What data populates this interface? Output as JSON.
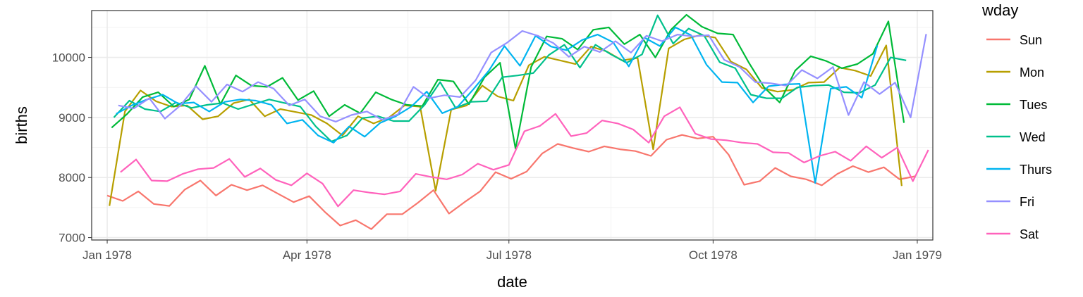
{
  "chart_data": {
    "type": "line",
    "xlabel": "date",
    "ylabel": "births",
    "xlim": [
      "1977-12-25",
      "1979-01-08"
    ],
    "ylim": [
      6960,
      10780
    ],
    "x_ticks": [
      {
        "date": "1978-01-01",
        "label": "Jan 1978"
      },
      {
        "date": "1978-04-01",
        "label": "Apr 1978"
      },
      {
        "date": "1978-07-01",
        "label": "Jul 1978"
      },
      {
        "date": "1978-10-01",
        "label": "Oct 1978"
      },
      {
        "date": "1979-01-01",
        "label": "Jan 1979"
      }
    ],
    "y_ticks": [
      7000,
      8000,
      9000,
      10000
    ],
    "grid": true,
    "legend": {
      "title": "wday",
      "placement": "right"
    },
    "series": [
      {
        "name": "Sun",
        "color": "#F8766D",
        "start": "1978-01-01",
        "values": [
          7701,
          7610,
          7770,
          7560,
          7527,
          7800,
          7950,
          7700,
          7880,
          7790,
          7870,
          7730,
          7590,
          7690,
          7430,
          7200,
          7290,
          7140,
          7390,
          7390,
          7580,
          7790,
          7400,
          7590,
          7770,
          8090,
          7980,
          8100,
          8400,
          8560,
          8490,
          8430,
          8520,
          8470,
          8440,
          8360,
          8630,
          8710,
          8650,
          8680,
          8380,
          7880,
          7940,
          8160,
          8020,
          7970,
          7870,
          8060,
          8190,
          8090,
          8170,
          7970,
          8020
        ]
      },
      {
        "name": "Mon",
        "color": "#B79F00",
        "start": "1978-01-02",
        "values": [
          7527,
          9100,
          9450,
          9270,
          9180,
          9200,
          8970,
          9020,
          9240,
          9300,
          9020,
          9140,
          9090,
          9040,
          8900,
          8700,
          9020,
          8900,
          9000,
          9200,
          9180,
          7780,
          9130,
          9200,
          9530,
          9350,
          9280,
          9870,
          10010,
          9950,
          9890,
          10180,
          10100,
          9950,
          9990,
          8470,
          10150,
          10300,
          10370,
          10330,
          9930,
          9800,
          9490,
          9430,
          9460,
          9580,
          9590,
          9830,
          9780,
          9690,
          10200,
          7860
        ]
      },
      {
        "name": "Tues",
        "color": "#00BA38",
        "start": "1978-01-03",
        "values": [
          8830,
          9060,
          9340,
          9420,
          9180,
          9300,
          9860,
          9220,
          9700,
          9530,
          9510,
          9660,
          9290,
          9440,
          9020,
          9210,
          9070,
          9420,
          9300,
          9210,
          9190,
          9630,
          9600,
          9220,
          9670,
          9910,
          8480,
          9840,
          10350,
          10310,
          10130,
          10460,
          10500,
          10220,
          10380,
          10000,
          10460,
          10710,
          10510,
          10400,
          10380,
          9920,
          9500,
          9250,
          9780,
          10020,
          9940,
          9820,
          9890,
          10060,
          10600,
          8910
        ]
      },
      {
        "name": "Wed",
        "color": "#00C08B",
        "start": "1978-01-04",
        "values": [
          9000,
          9280,
          9140,
          9100,
          9250,
          9160,
          9210,
          9240,
          9140,
          9220,
          9300,
          9240,
          9180,
          8850,
          8600,
          8700,
          8990,
          9020,
          8940,
          8940,
          9210,
          9590,
          9160,
          9260,
          9270,
          9670,
          9700,
          9740,
          10040,
          10210,
          9830,
          10210,
          10050,
          9910,
          10050,
          10700,
          10230,
          10480,
          10360,
          9920,
          9820,
          9380,
          9320,
          9320,
          9500,
          9530,
          9540,
          9420,
          9410,
          9540,
          10000,
          9950
        ]
      },
      {
        "name": "Thurs",
        "color": "#00B4F0",
        "start": "1978-01-05",
        "values": [
          9060,
          9200,
          9300,
          9380,
          9230,
          9250,
          9100,
          9260,
          9300,
          9280,
          9210,
          8900,
          8960,
          8700,
          8580,
          8850,
          8680,
          8910,
          9020,
          9180,
          9430,
          9070,
          9180,
          9470,
          9780,
          10190,
          9860,
          10360,
          10180,
          10120,
          10290,
          10380,
          10250,
          9850,
          10330,
          10190,
          10500,
          10370,
          9880,
          9590,
          9580,
          9250,
          9520,
          9550,
          9560,
          7910,
          9480,
          9510,
          9330,
          10200
        ]
      },
      {
        "name": "Fri",
        "color": "#9590FF",
        "start": "1978-01-06",
        "values": [
          9200,
          9150,
          9320,
          8980,
          9200,
          9520,
          9260,
          9550,
          9430,
          9590,
          9480,
          9200,
          9300,
          9020,
          8930,
          9040,
          9100,
          8960,
          9050,
          9510,
          9320,
          9370,
          9340,
          9620,
          10080,
          10240,
          10440,
          10360,
          10240,
          10010,
          10180,
          10090,
          10270,
          10080,
          10360,
          10270,
          10380,
          10350,
          10370,
          9960,
          9840,
          9590,
          9570,
          9530,
          9790,
          9650,
          9840,
          9040,
          9590,
          9390,
          9580,
          9000,
          10390
        ]
      },
      {
        "name": "Sat",
        "color": "#FF62BC",
        "start": "1978-01-07",
        "values": [
          8090,
          8300,
          7950,
          7940,
          8060,
          8140,
          8160,
          8310,
          8010,
          8150,
          7960,
          7870,
          8070,
          7900,
          7520,
          7790,
          7750,
          7720,
          7770,
          8060,
          8010,
          7970,
          8050,
          8230,
          8130,
          8210,
          8770,
          8860,
          9060,
          8690,
          8740,
          8950,
          8900,
          8800,
          8580,
          9020,
          9170,
          8730,
          8640,
          8620,
          8580,
          8560,
          8420,
          8410,
          8250,
          8360,
          8430,
          8280,
          8520,
          8330,
          8500,
          7940,
          8460
        ]
      }
    ]
  }
}
